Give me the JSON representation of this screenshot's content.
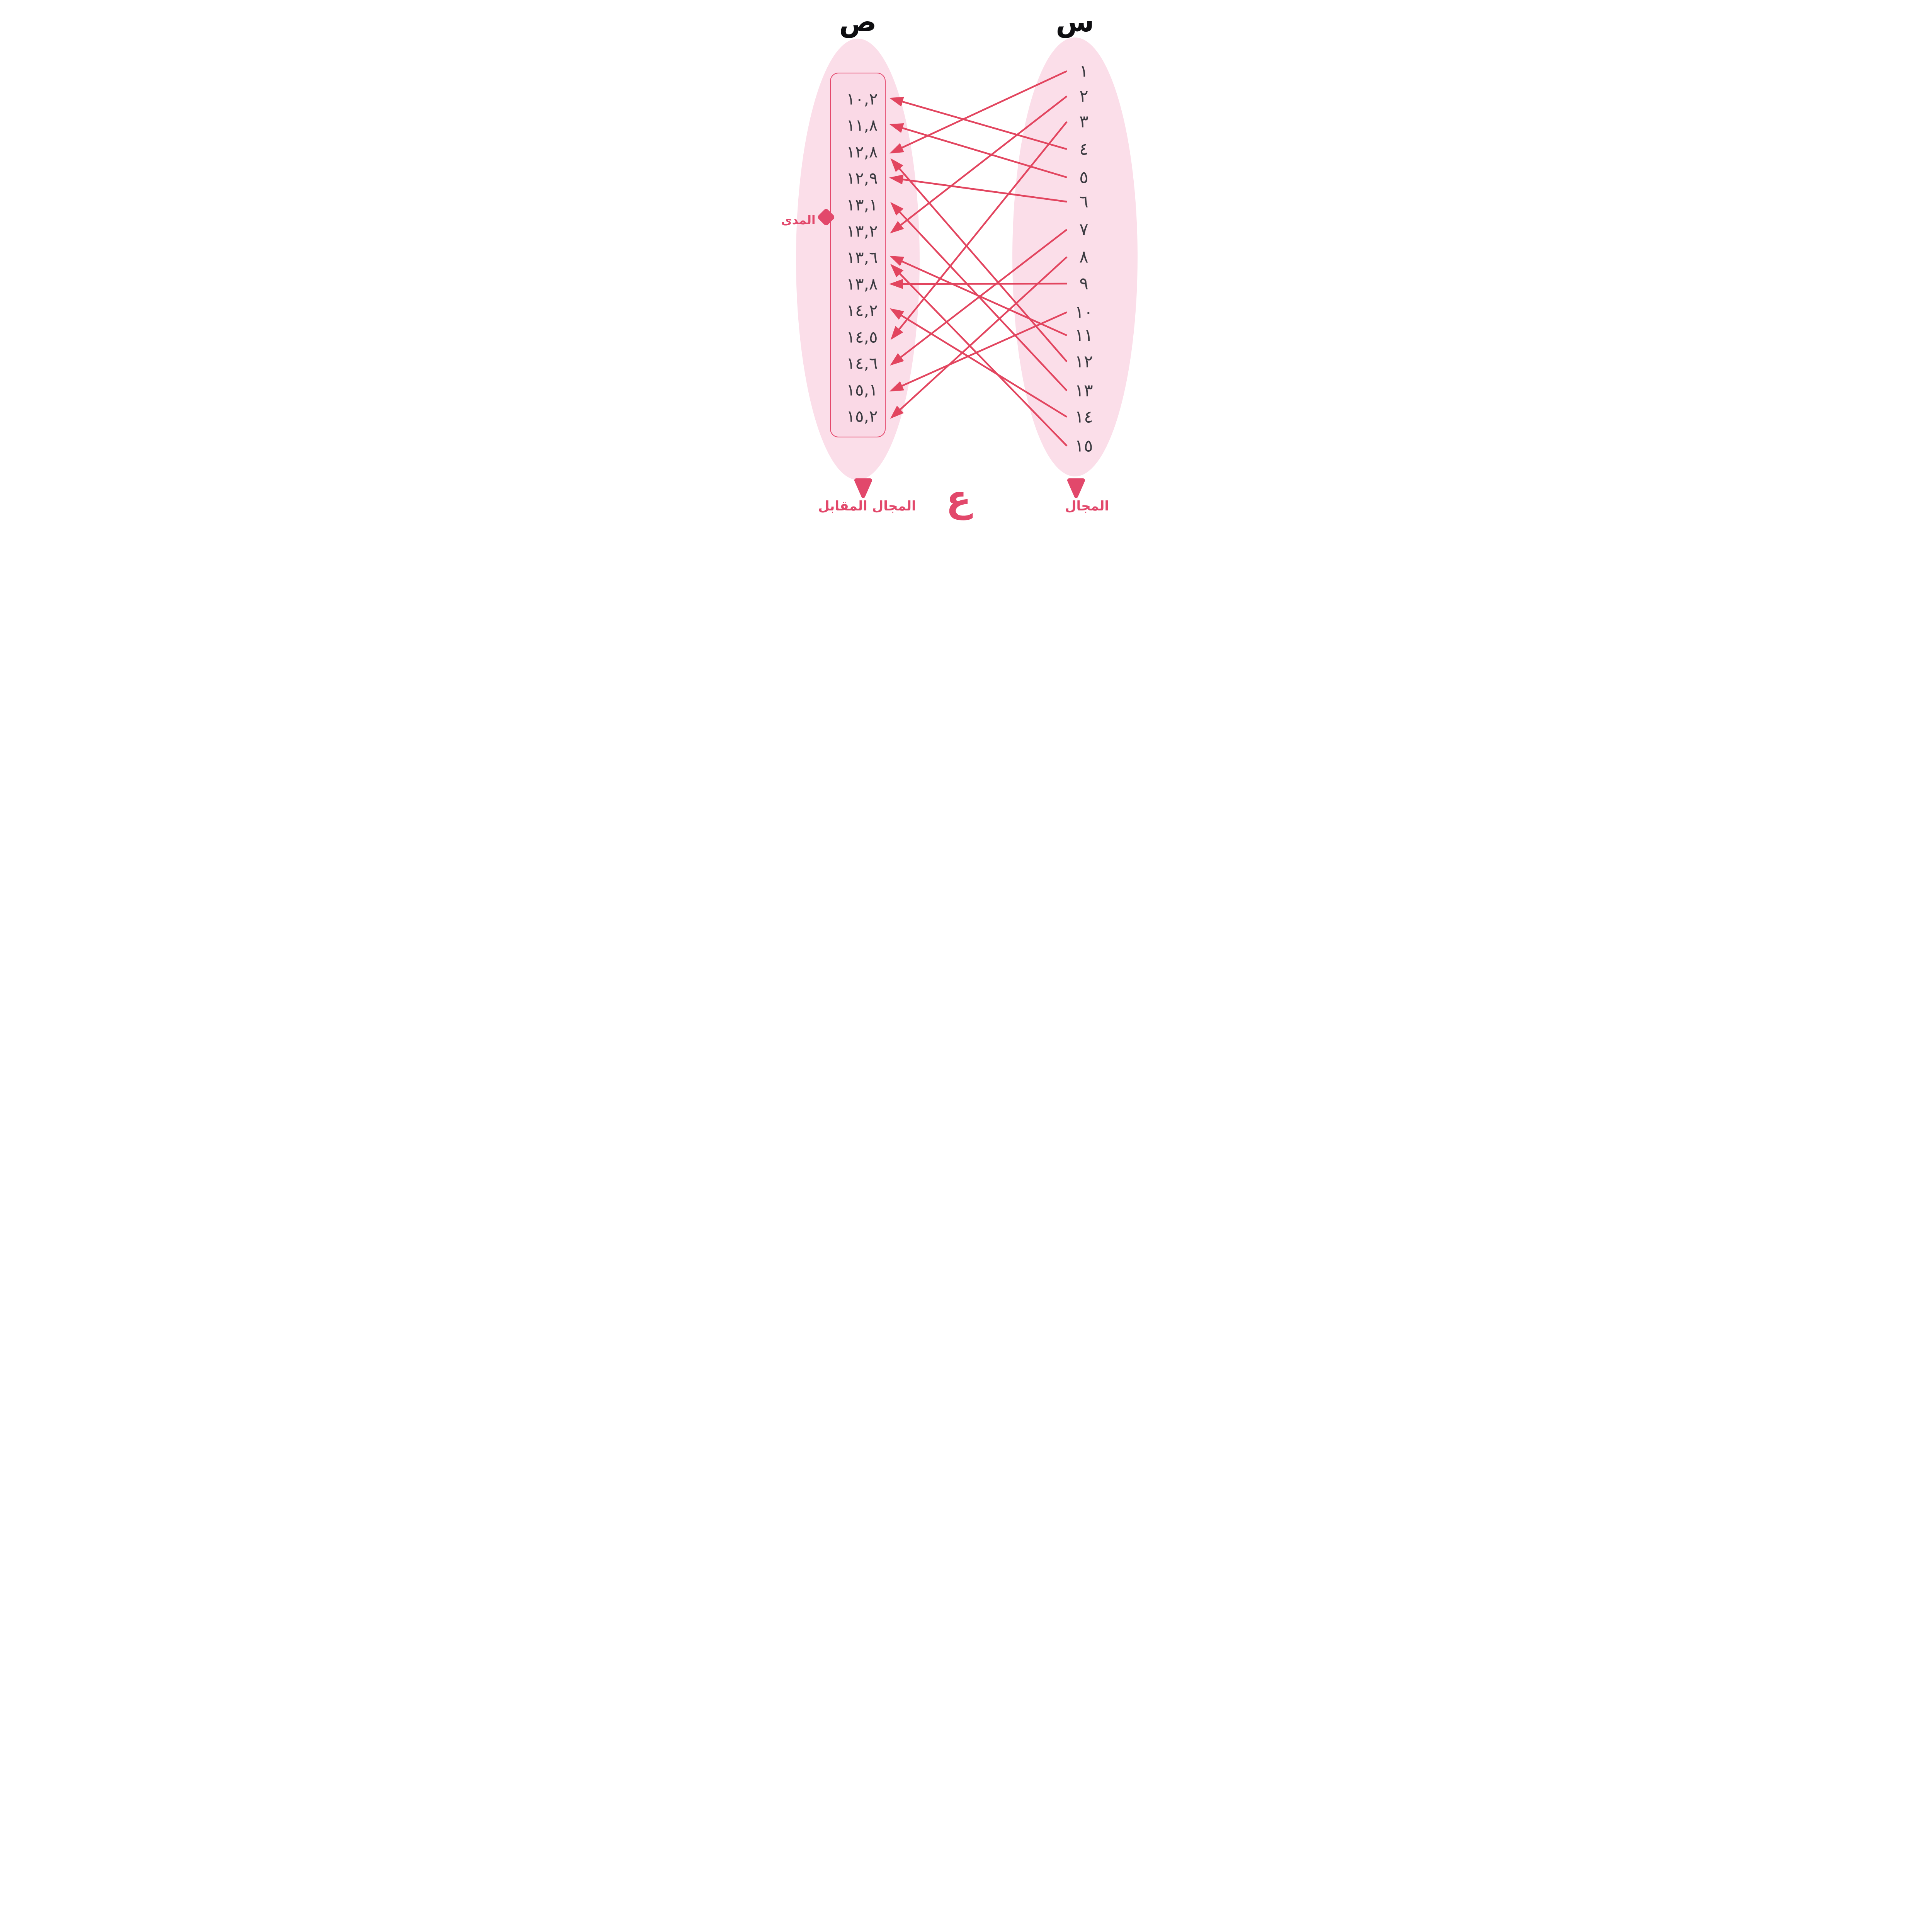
{
  "titles": {
    "codomain_set": "ص",
    "domain_set": "س"
  },
  "labels": {
    "range": "المدى",
    "codomain": "المجال المقابل",
    "domain": "المجال",
    "relation_symbol": "ع"
  },
  "codomain_values": [
    "١٠,٢",
    "١١,٨",
    "١٢,٨",
    "١٢,٩",
    "١٣,١",
    "١٣,٢",
    "١٣,٦",
    "١٣,٨",
    "١٤,٢",
    "١٤,٥",
    "١٤,٦",
    "١٥,١",
    "١٥,٢"
  ],
  "domain_values": [
    "١",
    "٢",
    "٣",
    "٤",
    "٥",
    "٦",
    "٧",
    "٨",
    "٩",
    "١٠",
    "١١",
    "١٢",
    "١٣",
    "١٤",
    "١٥"
  ],
  "mapping": [
    {
      "from": "١",
      "to": "١٢,٨"
    },
    {
      "from": "٢",
      "to": "١٣,٢"
    },
    {
      "from": "٣",
      "to": "١٤,٥"
    },
    {
      "from": "٤",
      "to": "١٠,٢"
    },
    {
      "from": "٥",
      "to": "١١,٨"
    },
    {
      "from": "٦",
      "to": "١٢,٩"
    },
    {
      "from": "٧",
      "to": "١٤,٦"
    },
    {
      "from": "٨",
      "to": "١٥,٢"
    },
    {
      "from": "٩",
      "to": "١٣,٨"
    },
    {
      "from": "١٠",
      "to": "١٥,١"
    },
    {
      "from": "١١",
      "to": "١٣,٦"
    },
    {
      "from": "١٢",
      "to": "١٢,٨"
    },
    {
      "from": "١٣",
      "to": "١٣,١"
    },
    {
      "from": "١٤",
      "to": "١٤,٢"
    },
    {
      "from": "١٥",
      "to": "١٣,٦"
    }
  ],
  "colors": {
    "accent": "#E2486B",
    "line": "#E2455F",
    "ellipse_fill": "#FBDEE9",
    "box_fill": "#FAD9E6",
    "box_border": "#E4486C",
    "number_text": "#3B3B41",
    "header_text": "#0E0E11",
    "background": "#FFFFFF"
  }
}
